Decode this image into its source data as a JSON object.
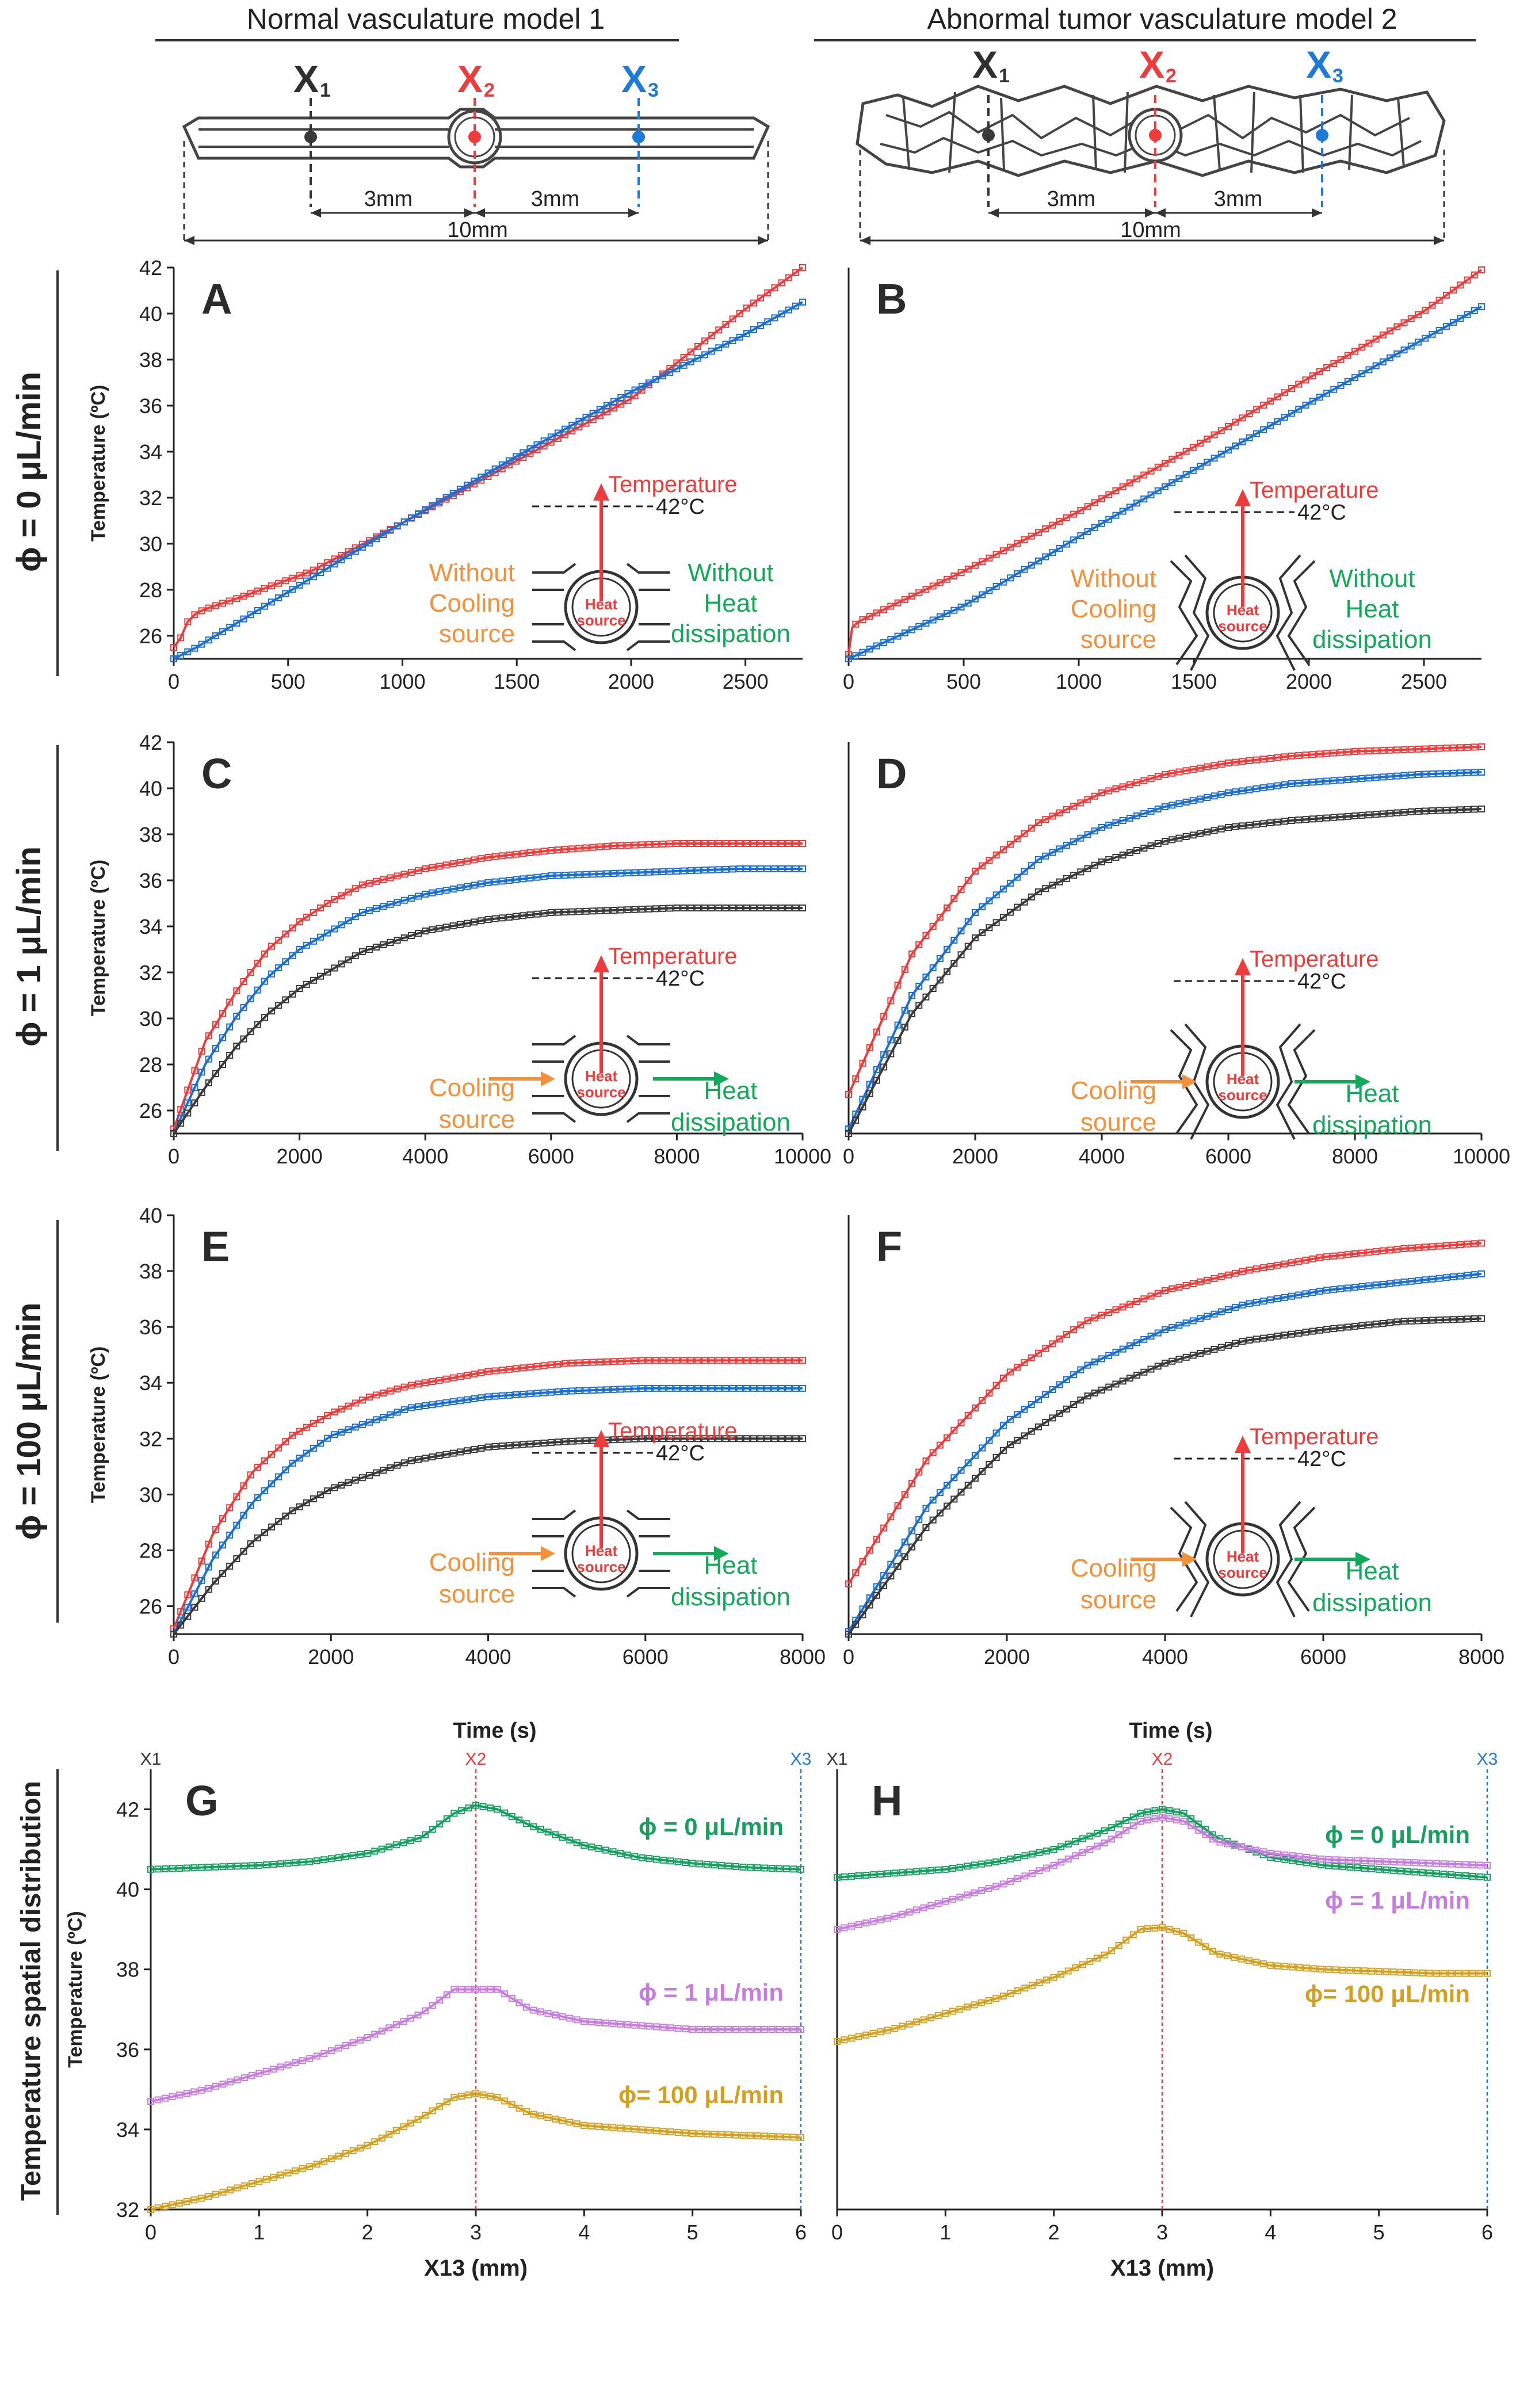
{
  "headers": {
    "left": "Normal vasculature model 1",
    "right": "Abnormal tumor vasculature model 2"
  },
  "schematic": {
    "x1": "X",
    "x2": "X",
    "x3": "X",
    "sub1": "1",
    "sub2": "2",
    "sub3": "3",
    "dist_a": "3mm",
    "dist_b": "3mm",
    "total": "10mm"
  },
  "row_labels": {
    "r1": "ϕ = 0 μL/min",
    "r2": "ϕ = 1 μL/min",
    "r3": "ϕ = 100 μL/min",
    "r4": "Temperature spatial distribution"
  },
  "time_axis_label": "Time (s)",
  "insets": {
    "temperature": "Temperature",
    "setpoint": "42°C",
    "heat": "Heat",
    "source": "source",
    "without": "Without",
    "cooling": "Cooling",
    "cooling_source": "source",
    "heat2": "Heat",
    "dissipation": "dissipation"
  },
  "colors": {
    "red": "#ee3b3b",
    "blue": "#1c6fd1",
    "black": "#3a3a3a",
    "green": "#16a060",
    "purple": "#c77de0",
    "gold": "#d4a020",
    "orange": "#f4903a",
    "green_text": "#14a85a",
    "blue_text": "#1d7ad6"
  },
  "chart_data": [
    {
      "panel": "A",
      "type": "line",
      "xlabel": "",
      "ylabel": "Temperature (ºC)",
      "xlim": [
        0,
        2750
      ],
      "ylim": [
        25,
        42
      ],
      "xticks": [
        0,
        500,
        1000,
        1500,
        2000,
        2500
      ],
      "yticks": [
        26,
        28,
        30,
        32,
        34,
        36,
        38,
        40,
        42
      ],
      "series": [
        {
          "name": "X2",
          "color": "red",
          "x": [
            0,
            30,
            60,
            100,
            150,
            300,
            600,
            1000,
            1500,
            2000,
            2500,
            2750
          ],
          "y": [
            25.5,
            25.9,
            26.6,
            27.0,
            27.2,
            27.7,
            28.8,
            30.9,
            33.6,
            36.3,
            40.2,
            42.0
          ]
        },
        {
          "name": "X3",
          "color": "blue",
          "x": [
            0,
            100,
            500,
            1000,
            1500,
            2000,
            2500,
            2750
          ],
          "y": [
            25.0,
            25.5,
            27.9,
            30.9,
            33.8,
            36.6,
            39.1,
            40.5
          ]
        }
      ]
    },
    {
      "panel": "B",
      "type": "line",
      "xlabel": "",
      "ylabel": "",
      "xlim": [
        0,
        2750
      ],
      "ylim": [
        25,
        42
      ],
      "xticks": [
        0,
        500,
        1000,
        1500,
        2000,
        2500
      ],
      "yticks": [],
      "series": [
        {
          "name": "X2",
          "color": "red",
          "x": [
            0,
            10,
            40,
            500,
            1000,
            1500,
            2000,
            2500,
            2750
          ],
          "y": [
            25.2,
            26.3,
            26.6,
            28.8,
            31.4,
            34.2,
            37.2,
            40.1,
            41.9
          ]
        },
        {
          "name": "X3",
          "color": "blue",
          "x": [
            0,
            500,
            1000,
            1500,
            2000,
            2500,
            2750
          ],
          "y": [
            25.0,
            27.3,
            30.3,
            33.2,
            36.1,
            38.9,
            40.3
          ]
        }
      ]
    },
    {
      "panel": "C",
      "type": "line",
      "xlabel": "",
      "ylabel": "Temperature (ºC)",
      "xlim": [
        0,
        10000
      ],
      "ylim": [
        25,
        42
      ],
      "xticks": [
        0,
        2000,
        4000,
        6000,
        8000,
        10000
      ],
      "yticks": [
        26,
        28,
        30,
        32,
        34,
        36,
        38,
        40,
        42
      ],
      "series": [
        {
          "name": "X2",
          "color": "red",
          "x": [
            0,
            500,
            1000,
            1500,
            2000,
            2500,
            3000,
            4000,
            5000,
            6000,
            7000,
            8000,
            9000,
            10000
          ],
          "y": [
            25.2,
            29.0,
            31.2,
            33.0,
            34.2,
            35.1,
            35.8,
            36.5,
            37.0,
            37.3,
            37.5,
            37.6,
            37.6,
            37.6
          ]
        },
        {
          "name": "X3",
          "color": "blue",
          "x": [
            0,
            500,
            1000,
            1500,
            2000,
            3000,
            4000,
            5000,
            6000,
            7000,
            8000,
            9000,
            10000
          ],
          "y": [
            25.0,
            28.0,
            30.1,
            31.8,
            33.0,
            34.6,
            35.4,
            35.9,
            36.2,
            36.3,
            36.4,
            36.5,
            36.5
          ]
        },
        {
          "name": "X1",
          "color": "black",
          "x": [
            0,
            500,
            1000,
            1500,
            2000,
            3000,
            4000,
            5000,
            6000,
            7000,
            8000,
            9000,
            10000
          ],
          "y": [
            25.0,
            27.0,
            28.8,
            30.2,
            31.3,
            32.9,
            33.8,
            34.3,
            34.6,
            34.7,
            34.8,
            34.8,
            34.8
          ]
        }
      ]
    },
    {
      "panel": "D",
      "type": "line",
      "xlabel": "",
      "ylabel": "",
      "xlim": [
        0,
        10000
      ],
      "ylim": [
        25,
        42
      ],
      "xticks": [
        0,
        2000,
        4000,
        6000,
        8000,
        10000
      ],
      "yticks": [],
      "series": [
        {
          "name": "X2",
          "color": "red",
          "x": [
            0,
            1000,
            2000,
            3000,
            4000,
            5000,
            6000,
            7000,
            8000,
            9000,
            10000
          ],
          "y": [
            26.7,
            32.8,
            36.4,
            38.5,
            39.8,
            40.6,
            41.1,
            41.4,
            41.6,
            41.7,
            41.8
          ]
        },
        {
          "name": "X3",
          "color": "blue",
          "x": [
            0,
            1000,
            2000,
            3000,
            4000,
            5000,
            6000,
            7000,
            8000,
            9000,
            10000
          ],
          "y": [
            25.2,
            31.0,
            34.6,
            36.9,
            38.3,
            39.2,
            39.8,
            40.2,
            40.4,
            40.6,
            40.7
          ]
        },
        {
          "name": "X1",
          "color": "black",
          "x": [
            0,
            1000,
            2000,
            3000,
            4000,
            5000,
            6000,
            7000,
            8000,
            9000,
            10000
          ],
          "y": [
            25.0,
            30.2,
            33.5,
            35.5,
            36.8,
            37.7,
            38.3,
            38.6,
            38.8,
            39.0,
            39.1
          ]
        }
      ]
    },
    {
      "panel": "E",
      "type": "line",
      "xlabel": "",
      "ylabel": "Temperature (ºC)",
      "xlim": [
        0,
        8000
      ],
      "ylim": [
        25,
        40
      ],
      "xticks": [
        0,
        2000,
        4000,
        6000,
        8000
      ],
      "yticks": [
        26,
        28,
        30,
        32,
        34,
        36,
        38,
        40
      ],
      "series": [
        {
          "name": "X2",
          "color": "red",
          "x": [
            0,
            500,
            1000,
            1500,
            2000,
            2500,
            3000,
            4000,
            5000,
            6000,
            7000,
            8000
          ],
          "y": [
            25.2,
            28.6,
            30.8,
            32.1,
            32.9,
            33.5,
            33.9,
            34.4,
            34.7,
            34.8,
            34.8,
            34.8
          ]
        },
        {
          "name": "X3",
          "color": "blue",
          "x": [
            0,
            500,
            1000,
            1500,
            2000,
            3000,
            4000,
            5000,
            6000,
            7000,
            8000
          ],
          "y": [
            25.0,
            27.7,
            29.7,
            31.1,
            32.1,
            33.1,
            33.5,
            33.7,
            33.8,
            33.8,
            33.8
          ]
        },
        {
          "name": "X1",
          "color": "black",
          "x": [
            0,
            500,
            1000,
            1500,
            2000,
            3000,
            4000,
            5000,
            6000,
            7000,
            8000
          ],
          "y": [
            25.0,
            26.8,
            28.3,
            29.4,
            30.2,
            31.2,
            31.7,
            31.9,
            32.0,
            32.0,
            32.0
          ]
        }
      ]
    },
    {
      "panel": "F",
      "type": "line",
      "xlabel": "",
      "ylabel": "",
      "xlim": [
        0,
        8000
      ],
      "ylim": [
        25,
        40
      ],
      "xticks": [
        0,
        2000,
        4000,
        6000,
        8000
      ],
      "yticks": [],
      "series": [
        {
          "name": "X2",
          "color": "red",
          "x": [
            0,
            1000,
            2000,
            3000,
            4000,
            5000,
            6000,
            7000,
            8000
          ],
          "y": [
            26.8,
            31.3,
            34.3,
            36.2,
            37.3,
            38.0,
            38.5,
            38.8,
            39.0
          ]
        },
        {
          "name": "X3",
          "color": "blue",
          "x": [
            0,
            1000,
            2000,
            3000,
            4000,
            5000,
            6000,
            7000,
            8000
          ],
          "y": [
            25.1,
            29.6,
            32.6,
            34.6,
            35.9,
            36.8,
            37.3,
            37.6,
            37.9
          ]
        },
        {
          "name": "X1",
          "color": "black",
          "x": [
            0,
            1000,
            2000,
            3000,
            4000,
            5000,
            6000,
            7000,
            8000
          ],
          "y": [
            25.0,
            28.9,
            31.7,
            33.5,
            34.7,
            35.5,
            35.9,
            36.2,
            36.3
          ]
        }
      ]
    },
    {
      "panel": "G",
      "type": "line",
      "xlabel": "X13 (mm)",
      "ylabel": "Temperature (ºC)",
      "xlim": [
        0,
        6
      ],
      "ylim": [
        32,
        43
      ],
      "xticks": [
        0,
        1,
        2,
        3,
        4,
        5,
        6
      ],
      "yticks": [
        32,
        34,
        36,
        38,
        40,
        42
      ],
      "markers": {
        "X1": 0,
        "X2": 3,
        "X3": 6
      },
      "series": [
        {
          "name": "ϕ = 0 μL/min",
          "color": "green",
          "x": [
            0,
            0.5,
            1,
            1.5,
            2,
            2.5,
            2.8,
            3,
            3.2,
            3.5,
            4,
            4.5,
            5,
            5.5,
            6
          ],
          "y": [
            40.5,
            40.55,
            40.6,
            40.7,
            40.9,
            41.3,
            41.9,
            42.1,
            42.0,
            41.6,
            41.1,
            40.8,
            40.65,
            40.55,
            40.5
          ]
        },
        {
          "name": "ϕ = 1 μL/min",
          "color": "purple",
          "x": [
            0,
            0.5,
            1,
            1.5,
            2,
            2.5,
            2.8,
            3,
            3.2,
            3.5,
            4,
            4.5,
            5,
            5.5,
            6
          ],
          "y": [
            34.7,
            35.0,
            35.4,
            35.8,
            36.3,
            36.9,
            37.5,
            37.5,
            37.5,
            37.0,
            36.7,
            36.6,
            36.5,
            36.5,
            36.5
          ]
        },
        {
          "name": "ϕ= 100 μL/min",
          "color": "gold",
          "x": [
            0,
            0.5,
            1,
            1.5,
            2,
            2.5,
            2.8,
            3,
            3.2,
            3.5,
            4,
            4.5,
            5,
            5.5,
            6
          ],
          "y": [
            32.0,
            32.3,
            32.7,
            33.1,
            33.6,
            34.3,
            34.8,
            34.9,
            34.8,
            34.4,
            34.1,
            34.0,
            33.9,
            33.85,
            33.8
          ]
        }
      ]
    },
    {
      "panel": "H",
      "type": "line",
      "xlabel": "X13 (mm)",
      "ylabel": "",
      "xlim": [
        0,
        6
      ],
      "ylim": [
        32,
        43
      ],
      "xticks": [
        0,
        1,
        2,
        3,
        4,
        5,
        6
      ],
      "yticks": [],
      "markers": {
        "X1": 0,
        "X2": 3,
        "X3": 6
      },
      "series": [
        {
          "name": "ϕ = 0 μL/min",
          "color": "green",
          "x": [
            0,
            0.5,
            1,
            1.5,
            2,
            2.5,
            2.8,
            3,
            3.2,
            3.5,
            4,
            4.5,
            5,
            5.5,
            6
          ],
          "y": [
            40.3,
            40.4,
            40.5,
            40.7,
            41.0,
            41.5,
            41.9,
            42.0,
            41.9,
            41.3,
            40.8,
            40.6,
            40.5,
            40.4,
            40.3
          ]
        },
        {
          "name": "ϕ = 1 μL/min",
          "color": "purple",
          "x": [
            0,
            0.5,
            1,
            1.5,
            2,
            2.5,
            2.8,
            3,
            3.2,
            3.5,
            4,
            4.5,
            5,
            5.5,
            6
          ],
          "y": [
            39.0,
            39.3,
            39.7,
            40.1,
            40.6,
            41.2,
            41.7,
            41.8,
            41.7,
            41.2,
            40.9,
            40.75,
            40.7,
            40.65,
            40.6
          ]
        },
        {
          "name": "ϕ= 100 μL/min",
          "color": "gold",
          "x": [
            0,
            0.5,
            1,
            1.5,
            2,
            2.5,
            2.8,
            3,
            3.2,
            3.5,
            4,
            4.5,
            5,
            5.5,
            6
          ],
          "y": [
            36.2,
            36.5,
            36.9,
            37.3,
            37.8,
            38.4,
            39.0,
            39.05,
            38.9,
            38.4,
            38.1,
            38.0,
            37.95,
            37.9,
            37.9
          ]
        }
      ]
    }
  ]
}
